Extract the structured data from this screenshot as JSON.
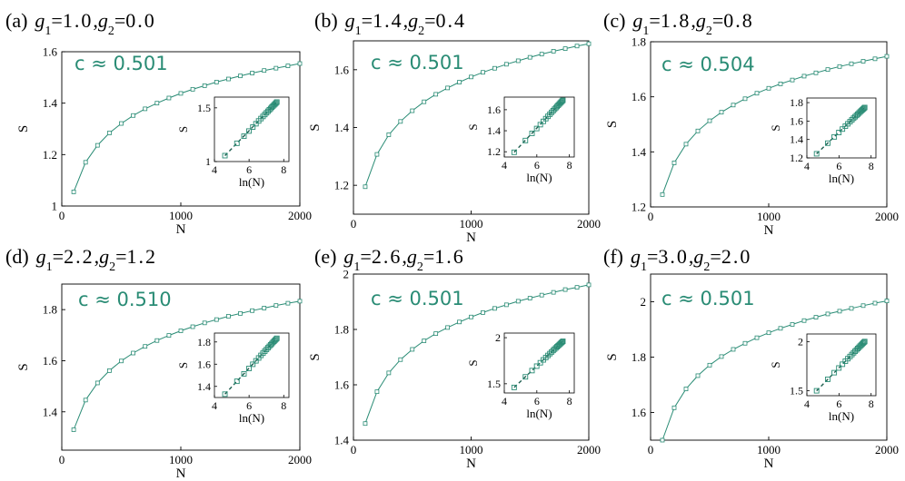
{
  "colors": {
    "accent": "#2a8c75",
    "axis": "#000000"
  },
  "chart_data": [
    {
      "type": "line",
      "tag": "(a)",
      "title_parts": [
        "1.0",
        "0.0"
      ],
      "annotation": "c ≈ 0.501",
      "xlabel": "N",
      "ylabel": "S",
      "xlim": [
        0,
        2000
      ],
      "ylim": [
        1.0,
        1.6
      ],
      "xticks": [
        0,
        1000,
        2000
      ],
      "yticks": [
        1.0,
        1.2,
        1.4,
        1.6
      ],
      "ytick_labels": [
        "1",
        "1.2",
        "1.4",
        "1.6"
      ],
      "x": [
        100,
        200,
        300,
        400,
        500,
        600,
        700,
        800,
        900,
        1000,
        1100,
        1200,
        1300,
        1400,
        1500,
        1600,
        1700,
        1800,
        1900,
        2000
      ],
      "y": [
        1.055,
        1.17,
        1.236,
        1.284,
        1.321,
        1.352,
        1.378,
        1.4,
        1.42,
        1.438,
        1.454,
        1.468,
        1.482,
        1.494,
        1.506,
        1.517,
        1.527,
        1.536,
        1.545,
        1.554
      ],
      "inset": {
        "xlabel": "ln(N)",
        "ylabel": "S",
        "xlim": [
          4,
          8.3
        ],
        "ylim": [
          1.0,
          1.6
        ],
        "xticks": [
          4,
          6,
          8
        ],
        "yticks": [
          1.0,
          1.5
        ],
        "ytick_labels": [
          "1",
          "1.5"
        ]
      }
    },
    {
      "type": "line",
      "tag": "(b)",
      "title_parts": [
        "1.4",
        "0.4"
      ],
      "annotation": "c ≈ 0.501",
      "xlabel": "N",
      "ylabel": "S",
      "xlim": [
        0,
        2000
      ],
      "ylim": [
        1.1,
        1.7
      ],
      "xticks": [
        0,
        1000,
        2000
      ],
      "yticks": [
        1.2,
        1.4,
        1.6
      ],
      "ytick_labels": [
        "1.2",
        "1.4",
        "1.6"
      ],
      "x": [
        100,
        200,
        300,
        400,
        500,
        600,
        700,
        800,
        900,
        1000,
        1100,
        1200,
        1300,
        1400,
        1500,
        1600,
        1700,
        1800,
        1900,
        2000
      ],
      "y": [
        1.195,
        1.307,
        1.375,
        1.421,
        1.458,
        1.489,
        1.515,
        1.537,
        1.557,
        1.575,
        1.591,
        1.605,
        1.619,
        1.631,
        1.643,
        1.654,
        1.664,
        1.673,
        1.682,
        1.69
      ],
      "inset": {
        "xlabel": "ln(N)",
        "ylabel": "S",
        "xlim": [
          4,
          8.3
        ],
        "ylim": [
          1.15,
          1.72
        ],
        "xticks": [
          4,
          6,
          8
        ],
        "yticks": [
          1.2,
          1.4,
          1.6
        ],
        "ytick_labels": [
          "1.2",
          "1.4",
          "1.6"
        ]
      }
    },
    {
      "type": "line",
      "tag": "(c)",
      "title_parts": [
        "1.8",
        "0.8"
      ],
      "annotation": "c ≈ 0.504",
      "xlabel": "N",
      "ylabel": "S",
      "xlim": [
        0,
        2000
      ],
      "ylim": [
        1.2,
        1.8
      ],
      "xticks": [
        0,
        1000,
        2000
      ],
      "yticks": [
        1.2,
        1.4,
        1.6,
        1.8
      ],
      "ytick_labels": [
        "1.2",
        "1.4",
        "1.6",
        "1.8"
      ],
      "x": [
        100,
        200,
        300,
        400,
        500,
        600,
        700,
        800,
        900,
        1000,
        1100,
        1200,
        1300,
        1400,
        1500,
        1600,
        1700,
        1800,
        1900,
        2000
      ],
      "y": [
        1.245,
        1.36,
        1.428,
        1.476,
        1.513,
        1.544,
        1.57,
        1.593,
        1.613,
        1.631,
        1.647,
        1.661,
        1.675,
        1.687,
        1.699,
        1.71,
        1.72,
        1.729,
        1.738,
        1.747
      ],
      "inset": {
        "xlabel": "ln(N)",
        "ylabel": "S",
        "xlim": [
          4,
          8.3
        ],
        "ylim": [
          1.2,
          1.85
        ],
        "xticks": [
          4,
          6,
          8
        ],
        "yticks": [
          1.2,
          1.4,
          1.6,
          1.8
        ],
        "ytick_labels": [
          "1.2",
          "1.4",
          "1.6",
          "1.8"
        ]
      }
    },
    {
      "type": "line",
      "tag": "(d)",
      "title_parts": [
        "2.2",
        "1.2"
      ],
      "annotation": "c ≈ 0.510",
      "xlabel": "N",
      "ylabel": "S",
      "xlim": [
        0,
        2000
      ],
      "ylim": [
        1.25,
        1.9
      ],
      "xticks": [
        0,
        1000,
        2000
      ],
      "yticks": [
        1.4,
        1.6,
        1.8
      ],
      "ytick_labels": [
        "1.4",
        "1.6",
        "1.8"
      ],
      "x": [
        100,
        200,
        300,
        400,
        500,
        600,
        700,
        800,
        900,
        1000,
        1100,
        1200,
        1300,
        1400,
        1500,
        1600,
        1700,
        1800,
        1900,
        2000
      ],
      "y": [
        1.33,
        1.446,
        1.513,
        1.561,
        1.599,
        1.63,
        1.656,
        1.679,
        1.699,
        1.717,
        1.733,
        1.748,
        1.761,
        1.774,
        1.785,
        1.796,
        1.806,
        1.816,
        1.825,
        1.833
      ],
      "inset": {
        "xlabel": "ln(N)",
        "ylabel": "S",
        "xlim": [
          4,
          8.3
        ],
        "ylim": [
          1.3,
          1.88
        ],
        "xticks": [
          4,
          6,
          8
        ],
        "yticks": [
          1.4,
          1.6,
          1.8
        ],
        "ytick_labels": [
          "1.4",
          "1.6",
          "1.8"
        ]
      }
    },
    {
      "type": "line",
      "tag": "(e)",
      "title_parts": [
        "2.6",
        "1.6"
      ],
      "annotation": "c ≈ 0.501",
      "xlabel": "N",
      "ylabel": "S",
      "xlim": [
        0,
        2000
      ],
      "ylim": [
        1.4,
        2.0
      ],
      "xticks": [
        0,
        1000,
        2000
      ],
      "yticks": [
        1.4,
        1.6,
        1.8,
        2.0
      ],
      "ytick_labels": [
        "1.4",
        "1.6",
        "1.8",
        "2"
      ],
      "x": [
        100,
        200,
        300,
        400,
        500,
        600,
        700,
        800,
        900,
        1000,
        1100,
        1200,
        1300,
        1400,
        1500,
        1600,
        1700,
        1800,
        1900,
        2000
      ],
      "y": [
        1.46,
        1.575,
        1.643,
        1.691,
        1.728,
        1.759,
        1.785,
        1.807,
        1.827,
        1.845,
        1.861,
        1.876,
        1.889,
        1.902,
        1.913,
        1.924,
        1.934,
        1.944,
        1.952,
        1.961
      ],
      "inset": {
        "xlabel": "ln(N)",
        "ylabel": "S",
        "xlim": [
          4,
          8.3
        ],
        "ylim": [
          1.4,
          2.05
        ],
        "xticks": [
          4,
          6,
          8
        ],
        "yticks": [
          1.5,
          2.0
        ],
        "ytick_labels": [
          "1.5",
          "2"
        ]
      }
    },
    {
      "type": "line",
      "tag": "(f)",
      "title_parts": [
        "3.0",
        "2.0"
      ],
      "annotation": "c ≈ 0.501",
      "xlabel": "N",
      "ylabel": "S",
      "xlim": [
        0,
        2000
      ],
      "ylim": [
        1.5,
        2.1
      ],
      "xticks": [
        0,
        1000,
        2000
      ],
      "yticks": [
        1.6,
        1.8,
        2.0
      ],
      "ytick_labels": [
        "1.6",
        "1.8",
        "2"
      ],
      "x": [
        100,
        200,
        300,
        400,
        500,
        600,
        700,
        800,
        900,
        1000,
        1100,
        1200,
        1300,
        1400,
        1500,
        1600,
        1700,
        1800,
        1900,
        2000
      ],
      "y": [
        1.5,
        1.617,
        1.685,
        1.733,
        1.771,
        1.802,
        1.828,
        1.85,
        1.87,
        1.888,
        1.904,
        1.918,
        1.932,
        1.944,
        1.956,
        1.966,
        1.976,
        1.986,
        1.995,
        2.003
      ],
      "inset": {
        "xlabel": "ln(N)",
        "ylabel": "S",
        "xlim": [
          4,
          8.3
        ],
        "ylim": [
          1.45,
          2.08
        ],
        "xticks": [
          4,
          6,
          8
        ],
        "yticks": [
          1.5,
          2.0
        ],
        "ytick_labels": [
          "1.5",
          "2"
        ]
      }
    }
  ]
}
